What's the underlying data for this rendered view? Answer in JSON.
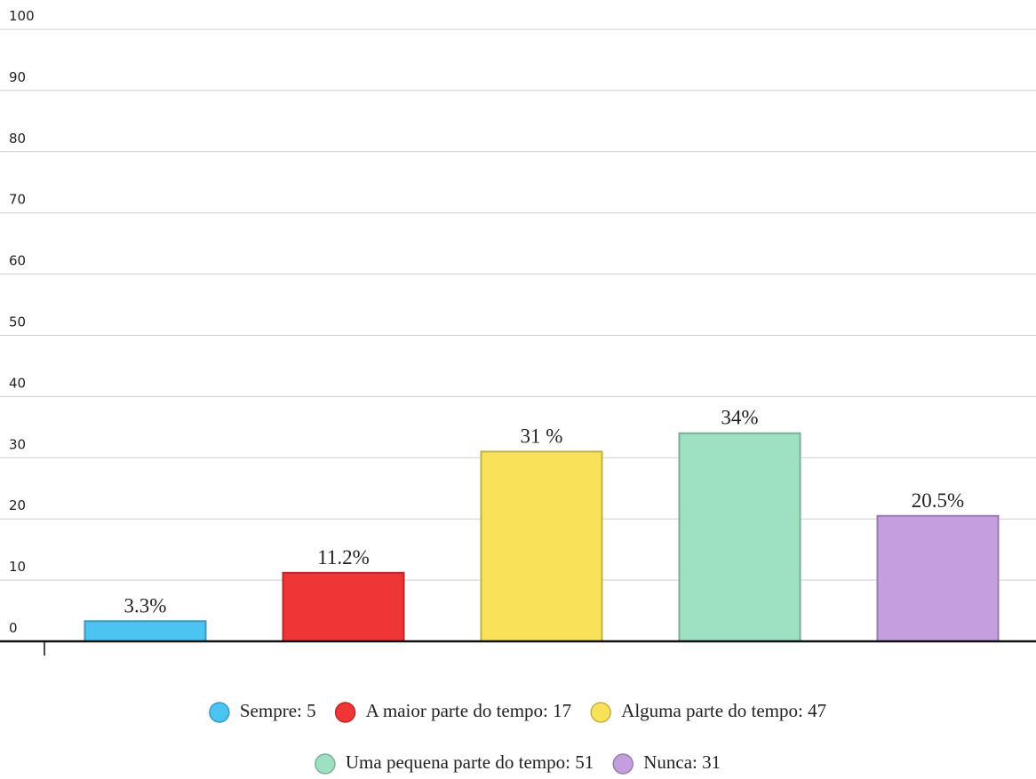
{
  "chart_data": {
    "type": "bar",
    "series": [
      {
        "name": "Sempre: 5",
        "color": "#4cc4f2",
        "values": [
          3.3
        ],
        "value_labels": [
          "3.3%"
        ]
      },
      {
        "name": "A maior parte do tempo: 17",
        "color": "#ef3535",
        "values": [
          11.2
        ],
        "value_labels": [
          "11.2%"
        ]
      },
      {
        "name": "Alguma parte do tempo: 47",
        "color": "#f7e25a",
        "values": [
          31
        ],
        "value_labels": [
          "31 %"
        ]
      },
      {
        "name": "Uma pequena parte do tempo: 51",
        "color": "#9de0c2",
        "values": [
          34
        ],
        "value_labels": [
          "34%"
        ]
      },
      {
        "name": "Nunca: 31",
        "color": "#c59ee0",
        "values": [
          20.5
        ],
        "value_labels": [
          "20.5%"
        ]
      }
    ],
    "ylim": [
      0,
      100
    ],
    "yticks": [
      0,
      10,
      20,
      30,
      40,
      50,
      60,
      70,
      80,
      90,
      100
    ],
    "grid": true
  }
}
